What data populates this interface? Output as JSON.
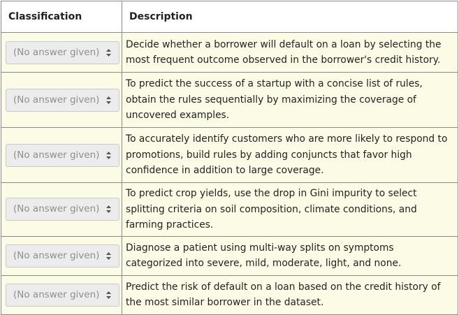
{
  "table": {
    "header_classification": "Classification",
    "header_description": "Description"
  },
  "rows": [
    {
      "select_value": "(No answer given)",
      "description": "Decide whether a borrower will default on a loan by selecting the most frequent outcome observed in the borrower's credit history."
    },
    {
      "select_value": "(No answer given)",
      "description": "To predict the success of a startup with a concise list of rules, obtain the rules sequentially by maximizing the coverage of uncovered examples."
    },
    {
      "select_value": "(No answer given)",
      "description": "To accurately identify customers who are more likely to respond to promotions, build rules by adding conjuncts that favor high confidence in addition to large coverage."
    },
    {
      "select_value": "(No answer given)",
      "description": "To predict crop yields, use the drop in Gini impurity to select splitting criteria on soil composition, climate conditions, and farming practices."
    },
    {
      "select_value": "(No answer given)",
      "description": "Diagnose a patient using multi-way splits on symptoms categorized into severe, mild, moderate, light, and none."
    },
    {
      "select_value": "(No answer given)",
      "description": "Predict the risk of default on a loan based on the credit history of the most similar borrower in the dataset."
    }
  ],
  "icons": {
    "select_arrow": "up-down-chevron-icon"
  },
  "colors": {
    "row_background": "#fcfce6",
    "header_background": "#ffffff",
    "border": "#8a8a8a",
    "select_background": "#ececec",
    "select_text": "#8e8e8e"
  }
}
